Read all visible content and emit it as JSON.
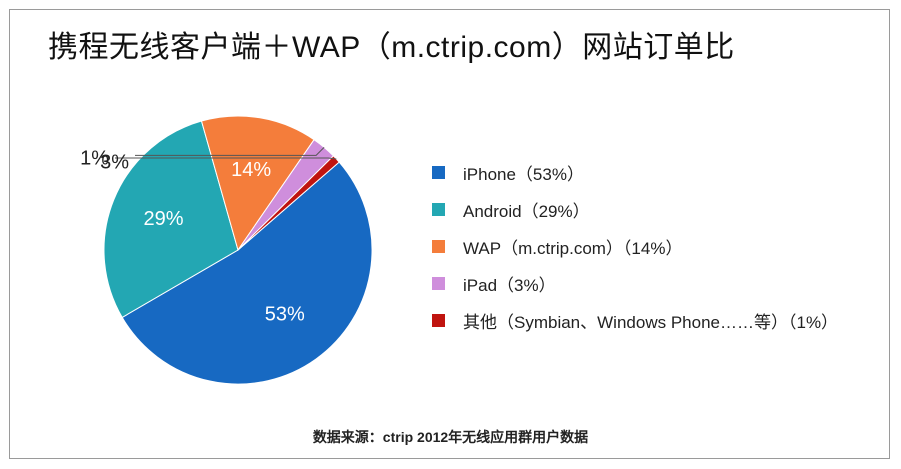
{
  "chart_data": {
    "type": "pie",
    "title": "携程无线客户端＋WAP（m.ctrip.com）网站订单比",
    "slices": [
      {
        "label": "iPhone（53%）",
        "value": 53,
        "display": "53%",
        "color": "#1769c2",
        "label_inside": true
      },
      {
        "label": "Android（29%）",
        "value": 29,
        "display": "29%",
        "color": "#23a7b3",
        "label_inside": true
      },
      {
        "label": "WAP（m.ctrip.com）（14%）",
        "value": 14,
        "display": "14%",
        "color": "#f47d3b",
        "label_inside": true
      },
      {
        "label": "iPad（3%）",
        "value": 3,
        "display": "3%",
        "color": "#cf8edc",
        "label_inside": false
      },
      {
        "label": "其他（Symbian、Windows Phone……等）（1%）",
        "value": 1,
        "display": "1%",
        "color": "#c0140f",
        "label_inside": false
      }
    ],
    "legend_position": "right",
    "source": "数据来源：ctrip 2012年无线应用群用户数据"
  }
}
